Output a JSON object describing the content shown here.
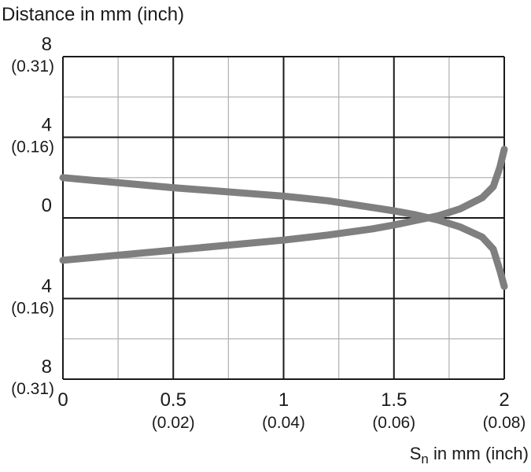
{
  "chart_data": {
    "type": "line",
    "title": "Distance in mm (inch)",
    "xlabel": {
      "main": "S",
      "subscript": "n",
      "rest": " in mm (inch)"
    },
    "xlim": [
      0,
      2
    ],
    "ylim": [
      -8,
      8
    ],
    "grid": true,
    "xticks": [
      {
        "value": 0,
        "label": "0",
        "sub": ""
      },
      {
        "value": 0.5,
        "label": "0.5",
        "sub": "(0.02)"
      },
      {
        "value": 1,
        "label": "1",
        "sub": "(0.04)"
      },
      {
        "value": 1.5,
        "label": "1.5",
        "sub": "(0.06)"
      },
      {
        "value": 2,
        "label": "2",
        "sub": "(0.08)"
      }
    ],
    "yticks": [
      {
        "value": 8,
        "label": "8",
        "sub": "(0.31)"
      },
      {
        "value": 4,
        "label": "4",
        "sub": "(0.16)"
      },
      {
        "value": 0,
        "label": "0",
        "sub": ""
      },
      {
        "value": -4,
        "label": "4",
        "sub": "(0.16)"
      },
      {
        "value": -8,
        "label": "8",
        "sub": "(0.31)"
      }
    ],
    "series": [
      {
        "color": "#7f7f7f",
        "points": [
          [
            0,
            2.0
          ],
          [
            0.5,
            1.5
          ],
          [
            1.0,
            1.08
          ],
          [
            1.2,
            0.85
          ],
          [
            1.4,
            0.52
          ],
          [
            1.5,
            0.35
          ],
          [
            1.6,
            0.15
          ],
          [
            1.7,
            -0.1
          ],
          [
            1.8,
            -0.45
          ],
          [
            1.9,
            -0.95
          ],
          [
            1.95,
            -1.55
          ],
          [
            1.98,
            -2.6
          ],
          [
            2.0,
            -3.4
          ]
        ]
      },
      {
        "color": "#7f7f7f",
        "points": [
          [
            0,
            -2.1
          ],
          [
            0.5,
            -1.6
          ],
          [
            1.0,
            -1.1
          ],
          [
            1.2,
            -0.85
          ],
          [
            1.4,
            -0.55
          ],
          [
            1.5,
            -0.35
          ],
          [
            1.6,
            -0.12
          ],
          [
            1.7,
            0.1
          ],
          [
            1.8,
            0.45
          ],
          [
            1.9,
            1.0
          ],
          [
            1.95,
            1.55
          ],
          [
            1.98,
            2.5
          ],
          [
            2.0,
            3.4
          ]
        ]
      }
    ]
  }
}
